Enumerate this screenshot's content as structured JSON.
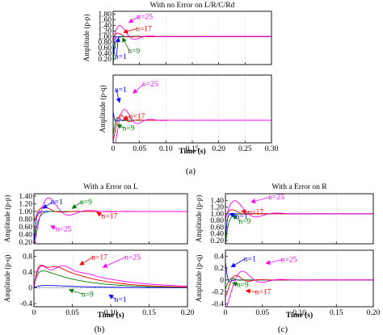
{
  "figure": {
    "subcaptions": [
      "(a)",
      "(b)",
      "(c)"
    ]
  },
  "chart_data": [
    {
      "id": "a-top",
      "type": "line",
      "title": "With no Error on L/R/C/Rd",
      "xlabel": "",
      "ylabel": "Amplitude (p-p)",
      "xlim": [
        0,
        0.3
      ],
      "ylim": [
        0.0,
        1.9
      ],
      "xticks": [
        0,
        0.05,
        0.1,
        0.15,
        0.2,
        0.25,
        0.3
      ],
      "xtick_labels": [
        "0",
        "0.05",
        "0.10",
        "0.15",
        "0.20",
        "0.25",
        "0.30"
      ],
      "show_xtick_labels": false,
      "yticks": [
        0.2,
        0.4,
        0.6,
        0.8,
        1.0,
        1.2,
        1.4,
        1.6,
        1.8
      ],
      "ytick_labels": [
        "0.20",
        "0.40",
        "0.60",
        "0.80",
        "1.00",
        "1.20",
        "1.40",
        "1.60",
        "1.80"
      ],
      "series": [
        {
          "name": "n=1",
          "color": "#0000ff",
          "base": 1.0,
          "a0": 0.0,
          "amp": -1.0,
          "tau": 0.0015,
          "w": 0,
          "phi": 0
        },
        {
          "name": "n=9",
          "color": "#008000",
          "base": 1.0,
          "a0": 0.0,
          "amp": -1.0,
          "tau": 0.0035,
          "w": 0,
          "phi": 0
        },
        {
          "name": "n=17",
          "color": "#ff0000",
          "base": 1.0,
          "a0": 0.0,
          "amp": 0.35,
          "tau": 0.01,
          "w": 150,
          "phi": -1.9
        },
        {
          "name": "n=25",
          "color": "#ff00ff",
          "base": 1.0,
          "a0": 0.0,
          "amp": 0.8,
          "tau": 0.02,
          "w": 110,
          "phi": -1.8
        }
      ],
      "annotations": [
        {
          "text": "n=25",
          "color": "#ff00ff",
          "x": 0.045,
          "y": 1.62,
          "ax": 0.03,
          "ay": 1.5
        },
        {
          "text": "n=17",
          "color": "#ff0000",
          "x": 0.043,
          "y": 1.2,
          "ax": 0.02,
          "ay": 1.15
        },
        {
          "text": "n=9",
          "color": "#008000",
          "x": 0.028,
          "y": 0.4,
          "ax": 0.018,
          "ay": 0.95
        },
        {
          "text": "n=1",
          "color": "#0000ff",
          "x": 0.003,
          "y": 0.2,
          "ax": 0.01,
          "ay": 0.95
        }
      ]
    },
    {
      "id": "a-bottom",
      "type": "line",
      "title": "",
      "xlabel": "Time (s)",
      "ylabel": "Amplitude (p-q)",
      "xlim": [
        0,
        0.3
      ],
      "ylim": [
        -0.4,
        0.8
      ],
      "xticks": [
        0,
        0.05,
        0.1,
        0.15,
        0.2,
        0.25,
        0.3
      ],
      "xtick_labels": [
        "0",
        "0.05",
        "0.10",
        "0.15",
        "0.20",
        "0.25",
        "0.30"
      ],
      "show_xtick_labels": true,
      "yticks": [],
      "ytick_labels": [],
      "series": [
        {
          "name": "n=1",
          "color": "#0000ff",
          "base": 0.0,
          "a0": 0.0,
          "amp": 0.15,
          "tau": 0.003,
          "w": 400,
          "phi": 0.0
        },
        {
          "name": "n=9",
          "color": "#008000",
          "base": 0.0,
          "a0": 0.0,
          "amp": -0.25,
          "tau": 0.006,
          "w": 300,
          "phi": 0.0
        },
        {
          "name": "n=17",
          "color": "#ff0000",
          "base": 0.0,
          "a0": 0.0,
          "amp": -0.35,
          "tau": 0.012,
          "w": 190,
          "phi": 0.0
        },
        {
          "name": "n=25",
          "color": "#ff00ff",
          "base": 0.0,
          "a0": 0.0,
          "amp": -0.6,
          "tau": 0.02,
          "w": 130,
          "phi": 0.0
        }
      ],
      "annotations": [
        {
          "text": "n=25",
          "color": "#ff00ff",
          "x": 0.055,
          "y": 0.6,
          "ax": 0.038,
          "ay": 0.48
        },
        {
          "text": "n=1",
          "color": "#0000ff",
          "x": 0.003,
          "y": 0.5,
          "ax": 0.012,
          "ay": 0.32
        },
        {
          "text": "n=17",
          "color": "#ff0000",
          "x": 0.03,
          "y": 0.03,
          "ax": 0.02,
          "ay": 0.02
        },
        {
          "text": "n=9",
          "color": "#008000",
          "x": 0.018,
          "y": -0.18,
          "ax": 0.008,
          "ay": -0.08
        }
      ]
    },
    {
      "id": "b-top",
      "type": "line",
      "title": "With a Error on L",
      "xlabel": "",
      "ylabel": "Amplitude (p-p)",
      "xlim": [
        0,
        0.2
      ],
      "ylim": [
        0.16,
        1.46
      ],
      "xticks": [
        0,
        0.05,
        0.1,
        0.15,
        0.2
      ],
      "xtick_labels": [
        "0",
        "0.05",
        "0.10",
        "0.15",
        "0.20"
      ],
      "show_xtick_labels": false,
      "yticks": [
        0.2,
        0.4,
        0.6,
        0.8,
        1.0,
        1.2,
        1.4
      ],
      "ytick_labels": [
        "0.20",
        "0.40",
        "0.60",
        "0.80",
        "1.00",
        "1.20",
        "1.40"
      ],
      "series": [
        {
          "name": "n=1",
          "color": "#0000ff",
          "base": 1.0,
          "a0": 0.0,
          "amp": -1.0,
          "tau": 0.002,
          "w": 0,
          "phi": 0
        },
        {
          "name": "n=9",
          "color": "#008000",
          "base": 1.0,
          "a0": 0.0,
          "amp": -1.0,
          "tau": 0.004,
          "w": 0,
          "phi": 0
        },
        {
          "name": "n=17",
          "color": "#ff0000",
          "base": 1.0,
          "a0": 0.0,
          "amp": -0.4,
          "tau": 0.012,
          "w": 140,
          "phi": 0.8
        },
        {
          "name": "n=25",
          "color": "#ff00ff",
          "base": 1.0,
          "a0": 0.0,
          "amp": -1.0,
          "tau": 0.02,
          "w": 120,
          "phi": 0.45
        }
      ],
      "annotations": [
        {
          "text": "n=1",
          "color": "#0000ff",
          "x": 0.022,
          "y": 1.19,
          "ax": 0.012,
          "ay": 1.08
        },
        {
          "text": "n=9",
          "color": "#008000",
          "x": 0.06,
          "y": 1.19,
          "ax": 0.05,
          "ay": 1.08
        },
        {
          "text": "n=17",
          "color": "#ff0000",
          "x": 0.088,
          "y": 0.82,
          "ax": 0.082,
          "ay": 0.97
        },
        {
          "text": "n=25",
          "color": "#ff00ff",
          "x": 0.028,
          "y": 0.49,
          "ax": 0.022,
          "ay": 0.62
        }
      ]
    },
    {
      "id": "b-bottom",
      "type": "line",
      "title": "",
      "xlabel": "Time (s)",
      "ylabel": "Amplitude (p-q)",
      "xlim": [
        0,
        0.2
      ],
      "ylim": [
        -0.48,
        0.95
      ],
      "xticks": [
        0,
        0.05,
        0.1,
        0.15,
        0.2
      ],
      "xtick_labels": [
        "0",
        "0.05",
        "0.10",
        "0.15",
        "0.20"
      ],
      "show_xtick_labels": true,
      "yticks": [
        -0.4,
        0,
        0.4,
        0.8
      ],
      "ytick_labels": [
        "-0.4",
        "0",
        "0.4",
        "0.8"
      ],
      "series": [
        {
          "name": "n=1",
          "color": "#0000ff",
          "base": 0.0,
          "a0": 0.05,
          "amp": 0.0,
          "tau": 0.01,
          "w": 0,
          "phi": 0,
          "slow": 0.05
        },
        {
          "name": "n=9",
          "color": "#008000",
          "base": 0.0,
          "a0": 0.3,
          "amp": -0.28,
          "tau": 0.005,
          "w": 0,
          "phi": 0,
          "slow": 0.05
        },
        {
          "name": "n=17",
          "color": "#ff0000",
          "base": 0.0,
          "a0": 0.52,
          "amp": -0.5,
          "tau": 0.012,
          "w": 220,
          "phi": 0,
          "slow": 0.05
        },
        {
          "name": "n=25",
          "color": "#ff00ff",
          "base": 0.0,
          "a0": 0.58,
          "amp": -0.55,
          "tau": 0.02,
          "w": 190,
          "phi": 0,
          "slow": 0.06
        }
      ],
      "annotations": [
        {
          "text": "n=17",
          "color": "#ff0000",
          "x": 0.075,
          "y": 0.72,
          "ax": 0.06,
          "ay": 0.58
        },
        {
          "text": "n=25",
          "color": "#ff00ff",
          "x": 0.118,
          "y": 0.72,
          "ax": 0.09,
          "ay": 0.52
        },
        {
          "text": "n=9",
          "color": "#008000",
          "x": 0.062,
          "y": -0.22,
          "ax": 0.046,
          "ay": -0.05
        },
        {
          "text": "n=1",
          "color": "#0000ff",
          "x": 0.105,
          "y": -0.36,
          "ax": 0.098,
          "ay": -0.18
        }
      ]
    },
    {
      "id": "c-top",
      "type": "line",
      "title": "With a Error on R",
      "xlabel": "",
      "ylabel": "Amplitude (p-p)",
      "xlim": [
        0,
        0.2
      ],
      "ylim": [
        0.1,
        1.6
      ],
      "xticks": [
        0,
        0.05,
        0.1,
        0.15,
        0.2
      ],
      "xtick_labels": [
        "0",
        "0.05",
        "0.10",
        "0.15",
        "0.20"
      ],
      "show_xtick_labels": false,
      "yticks": [
        0.2,
        0.4,
        0.6,
        0.8,
        1.0,
        1.2,
        1.4
      ],
      "ytick_labels": [
        "0.20",
        "0.40",
        "0.60",
        "0.80",
        "1.00",
        "1.20",
        "1.40"
      ],
      "series": [
        {
          "name": "n=1",
          "color": "#0000ff",
          "base": 1.0,
          "a0": 0.0,
          "amp": -1.0,
          "tau": 0.0015,
          "w": 0,
          "phi": 0
        },
        {
          "name": "n=9",
          "color": "#008000",
          "base": 1.0,
          "a0": 0.0,
          "amp": -1.0,
          "tau": 0.0035,
          "w": 0,
          "phi": 0
        },
        {
          "name": "n=17",
          "color": "#ff0000",
          "base": 1.0,
          "a0": 0.0,
          "amp": 0.35,
          "tau": 0.01,
          "w": 150,
          "phi": -1.9
        },
        {
          "name": "n=25",
          "color": "#ff00ff",
          "base": 1.0,
          "a0": 0.0,
          "amp": 0.8,
          "tau": 0.02,
          "w": 110,
          "phi": -1.8
        }
      ],
      "annotations": [
        {
          "text": "n=25",
          "color": "#ff00ff",
          "x": 0.058,
          "y": 1.43,
          "ax": 0.035,
          "ay": 1.35
        },
        {
          "text": "n=17",
          "color": "#ff0000",
          "x": 0.03,
          "y": 0.98,
          "ax": 0.022,
          "ay": 1.08
        },
        {
          "text": "n=9",
          "color": "#008000",
          "x": 0.018,
          "y": 0.7,
          "ax": 0.01,
          "ay": 0.95
        },
        {
          "text": "n=1",
          "color": "#0000ff",
          "x": 0.014,
          "y": 0.85,
          "ax": 0.006,
          "ay": 1.0
        }
      ]
    },
    {
      "id": "c-bottom",
      "type": "line",
      "title": "",
      "xlabel": "Time (s)",
      "ylabel": "Amplitude (p-q)",
      "xlim": [
        0,
        0.2
      ],
      "ylim": [
        -0.45,
        0.5
      ],
      "xticks": [
        0,
        0.05,
        0.1,
        0.15,
        0.2
      ],
      "xtick_labels": [
        "0",
        "0.05",
        "0.10",
        "0.15",
        "0.20"
      ],
      "show_xtick_labels": true,
      "yticks": [
        -0.4,
        -0.2,
        0,
        0.2,
        0.4
      ],
      "ytick_labels": [
        "-0.4",
        "-0.2",
        "0",
        "0.2",
        "0.4"
      ],
      "series": [
        {
          "name": "n=1",
          "color": "#0000ff",
          "base": 0.0,
          "a0": 0.0,
          "amp": 0.3,
          "tau": 0.003,
          "w": 400,
          "phi": 0.0
        },
        {
          "name": "n=9",
          "color": "#008000",
          "base": 0.0,
          "a0": 0.0,
          "amp": -0.15,
          "tau": 0.006,
          "w": 300,
          "phi": 0.0
        },
        {
          "name": "n=17",
          "color": "#ff0000",
          "base": 0.0,
          "a0": 0.0,
          "amp": -0.28,
          "tau": 0.012,
          "w": 190,
          "phi": 0.0
        },
        {
          "name": "n=25",
          "color": "#ff00ff",
          "base": 0.0,
          "a0": 0.0,
          "amp": -0.5,
          "tau": 0.02,
          "w": 120,
          "phi": 0.0
        }
      ],
      "annotations": [
        {
          "text": "n=1",
          "color": "#0000ff",
          "x": 0.025,
          "y": 0.32,
          "ax": 0.008,
          "ay": 0.22
        },
        {
          "text": "n=25",
          "color": "#ff00ff",
          "x": 0.075,
          "y": 0.3,
          "ax": 0.055,
          "ay": 0.28
        },
        {
          "text": "n=17",
          "color": "#ff0000",
          "x": 0.04,
          "y": -0.24,
          "ax": 0.028,
          "ay": -0.18
        },
        {
          "text": "n=9",
          "color": "#008000",
          "x": 0.015,
          "y": -0.12,
          "ax": 0.01,
          "ay": -0.05
        }
      ]
    }
  ]
}
